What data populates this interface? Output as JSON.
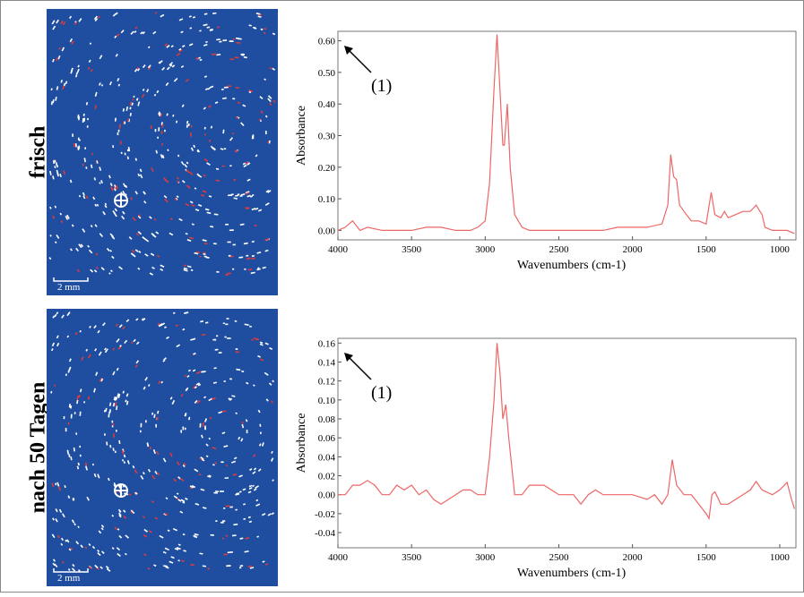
{
  "panels": [
    {
      "label": "frisch",
      "scale": "2 mm"
    },
    {
      "label": "nach 50 Tagen",
      "scale": "2 mm"
    }
  ],
  "chart_data": [
    {
      "type": "line",
      "ylabel": "Absorbance",
      "xlabel": "Wavenumbers (cm-1)",
      "annotation": "(1)",
      "xlim": [
        4000,
        890
      ],
      "xticks": [
        4000,
        3500,
        3000,
        2500,
        2000,
        1500,
        1000
      ],
      "ylim": [
        -0.03,
        0.63
      ],
      "yticks": [
        {
          "value": 0,
          "label": "0.00"
        },
        {
          "value": 0.1,
          "label": "0.10"
        },
        {
          "value": 0.2,
          "label": "0.20"
        },
        {
          "value": 0.3,
          "label": "0.30"
        },
        {
          "value": 0.4,
          "label": "0.40"
        },
        {
          "value": 0.5,
          "label": "0.50"
        },
        {
          "value": 0.6,
          "label": "0.60"
        }
      ],
      "x": [
        4000,
        3950,
        3900,
        3850,
        3800,
        3700,
        3600,
        3500,
        3400,
        3300,
        3200,
        3100,
        3050,
        3000,
        2970,
        2940,
        2920,
        2900,
        2880,
        2870,
        2850,
        2830,
        2800,
        2750,
        2700,
        2600,
        2500,
        2400,
        2300,
        2200,
        2100,
        2000,
        1900,
        1800,
        1760,
        1740,
        1720,
        1700,
        1680,
        1650,
        1600,
        1550,
        1500,
        1465,
        1440,
        1400,
        1375,
        1350,
        1300,
        1250,
        1200,
        1160,
        1120,
        1100,
        1050,
        1000,
        950,
        900
      ],
      "series": [
        {
          "color": "#ee6666",
          "values": [
            0.0,
            0.01,
            0.03,
            0.0,
            0.01,
            0.0,
            0.0,
            0.0,
            0.01,
            0.01,
            0.0,
            0.0,
            0.01,
            0.03,
            0.15,
            0.45,
            0.62,
            0.45,
            0.27,
            0.27,
            0.4,
            0.2,
            0.05,
            0.01,
            0.0,
            0.0,
            0.0,
            0.0,
            0.0,
            0.0,
            0.01,
            0.01,
            0.01,
            0.02,
            0.08,
            0.24,
            0.17,
            0.16,
            0.08,
            0.06,
            0.03,
            0.03,
            0.02,
            0.12,
            0.05,
            0.04,
            0.06,
            0.04,
            0.05,
            0.06,
            0.06,
            0.08,
            0.05,
            0.01,
            0.0,
            0.0,
            0.0,
            -0.01
          ]
        }
      ]
    },
    {
      "type": "line",
      "ylabel": "Absorbance",
      "xlabel": "Wavenumbers (cm-1)",
      "annotation": "(1)",
      "xlim": [
        4000,
        890
      ],
      "xticks": [
        4000,
        3500,
        3000,
        2500,
        2000,
        1500,
        1000
      ],
      "ylim": [
        -0.056,
        0.165
      ],
      "yticks": [
        {
          "value": -0.04,
          "label": "-0.04"
        },
        {
          "value": -0.02,
          "label": "-0.02"
        },
        {
          "value": 0,
          "label": "0.00"
        },
        {
          "value": 0.02,
          "label": "0.02"
        },
        {
          "value": 0.04,
          "label": "0.04"
        },
        {
          "value": 0.06,
          "label": "0.06"
        },
        {
          "value": 0.08,
          "label": "0.08"
        },
        {
          "value": 0.1,
          "label": "0.10"
        },
        {
          "value": 0.12,
          "label": "0.12"
        },
        {
          "value": 0.14,
          "label": "0.14"
        },
        {
          "value": 0.16,
          "label": "0.16"
        }
      ],
      "x": [
        4000,
        3950,
        3900,
        3850,
        3800,
        3750,
        3700,
        3650,
        3600,
        3550,
        3500,
        3450,
        3400,
        3350,
        3300,
        3250,
        3200,
        3150,
        3100,
        3050,
        3000,
        2970,
        2940,
        2920,
        2900,
        2880,
        2860,
        2840,
        2820,
        2800,
        2750,
        2700,
        2650,
        2600,
        2550,
        2500,
        2450,
        2400,
        2350,
        2300,
        2250,
        2200,
        2100,
        2000,
        1900,
        1850,
        1800,
        1760,
        1730,
        1700,
        1650,
        1600,
        1550,
        1500,
        1480,
        1460,
        1440,
        1400,
        1350,
        1300,
        1250,
        1200,
        1160,
        1120,
        1050,
        1000,
        950,
        920,
        900
      ],
      "series": [
        {
          "color": "#ee6666",
          "values": [
            0.0,
            0.0,
            0.01,
            0.01,
            0.015,
            0.01,
            0.0,
            0.0,
            0.01,
            0.005,
            0.01,
            0.0,
            0.005,
            -0.005,
            -0.01,
            -0.005,
            0.0,
            0.005,
            0.005,
            0.0,
            0.0,
            0.04,
            0.1,
            0.16,
            0.13,
            0.08,
            0.095,
            0.06,
            0.03,
            0.0,
            0.0,
            0.01,
            0.01,
            0.01,
            0.005,
            0.0,
            0.0,
            0.0,
            -0.01,
            0.0,
            0.005,
            0.0,
            0.0,
            0.0,
            -0.005,
            0.0,
            -0.01,
            0.0,
            0.037,
            0.01,
            0.0,
            0.0,
            -0.01,
            -0.02,
            -0.025,
            0.0,
            0.003,
            -0.01,
            -0.01,
            -0.005,
            0.0,
            0.005,
            0.014,
            0.005,
            0.0,
            0.005,
            0.013,
            -0.005,
            -0.015
          ]
        }
      ]
    }
  ]
}
